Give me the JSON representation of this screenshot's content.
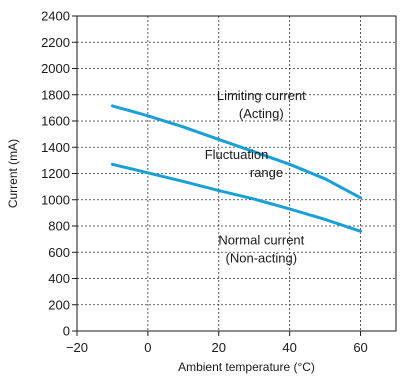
{
  "chart_data": {
    "type": "line",
    "title": "",
    "xlabel": "Ambient temperature (°C)",
    "ylabel": "Current (mA)",
    "xlim": [
      -20,
      70
    ],
    "ylim": [
      0,
      2400
    ],
    "xticks": [
      -20,
      0,
      20,
      40,
      60
    ],
    "xtick_labels": [
      "−20",
      "0",
      "20",
      "40",
      "60"
    ],
    "yticks": [
      0,
      200,
      400,
      600,
      800,
      1000,
      1200,
      1400,
      1600,
      1800,
      2000,
      2200,
      2400
    ],
    "grid": true,
    "series": [
      {
        "name": "Limiting current",
        "color": "#1aa0d8",
        "x": [
          -10,
          0,
          10,
          20,
          30,
          40,
          50,
          60
        ],
        "y": [
          1715,
          1640,
          1555,
          1460,
          1365,
          1270,
          1160,
          1015
        ]
      },
      {
        "name": "Normal current",
        "color": "#1aa0d8",
        "x": [
          -10,
          0,
          10,
          20,
          30,
          40,
          50,
          60
        ],
        "y": [
          1270,
          1205,
          1140,
          1070,
          1005,
          930,
          850,
          760
        ]
      }
    ],
    "annotations": [
      {
        "lines": [
          "Limiting current",
          "(Acting)"
        ],
        "x": 32,
        "y": 1760,
        "anchor": "middle"
      },
      {
        "lines": [
          "Fluctuation",
          "range"
        ],
        "x": 25,
        "y": 1310,
        "anchor": "middle"
      },
      {
        "lines": [
          "Normal current",
          "(Non-acting)"
        ],
        "x": 32,
        "y": 660,
        "anchor": "middle"
      }
    ]
  }
}
